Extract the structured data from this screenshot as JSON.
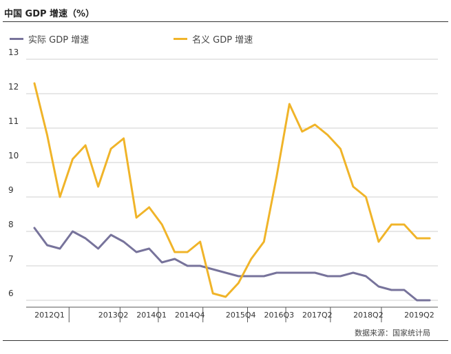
{
  "header": {
    "title": "中国 GDP 增速（%）"
  },
  "source": "数据来源：国家统计局",
  "colors": {
    "real": "#77739b",
    "nominal": "#f0b429",
    "grid": "#cfcfcf",
    "axis": "#555555"
  },
  "chart_data": {
    "type": "line",
    "title": "中国 GDP 增速（%）",
    "xlabel": "",
    "ylabel": "",
    "ylim": [
      5.8,
      13
    ],
    "yticks": [
      6,
      7,
      8,
      9,
      10,
      11,
      12,
      13
    ],
    "grid": true,
    "legend_position": "top-left",
    "x": [
      "2012Q1",
      "2012Q2",
      "2012Q3",
      "2012Q4",
      "2013Q1",
      "2013Q2",
      "2013Q3",
      "2013Q4",
      "2014Q1",
      "2014Q2",
      "2014Q3",
      "2014Q4",
      "2015Q1",
      "2015Q2",
      "2015Q3",
      "2015Q4",
      "2016Q1",
      "2016Q2",
      "2016Q3",
      "2016Q4",
      "2017Q1",
      "2017Q2",
      "2017Q3",
      "2017Q4",
      "2018Q1",
      "2018Q2",
      "2018Q3",
      "2018Q4",
      "2019Q1",
      "2019Q2",
      "2019Q3",
      "2019Q4"
    ],
    "xtick_labels": [
      "2012Q1",
      "2013Q2",
      "2014Q1",
      "2014Q4",
      "2015Q4",
      "2016Q3",
      "2017Q2",
      "2018Q2",
      "2019Q2"
    ],
    "xtick_label_indices": [
      0,
      5,
      8,
      11,
      15,
      18,
      21,
      25,
      29
    ],
    "series": [
      {
        "name": "实际 GDP 增速",
        "color": "#77739b",
        "values": [
          8.1,
          7.6,
          7.5,
          8.0,
          7.8,
          7.5,
          7.9,
          7.7,
          7.4,
          7.5,
          7.1,
          7.2,
          7.0,
          7.0,
          6.9,
          6.8,
          6.7,
          6.7,
          6.7,
          6.8,
          6.8,
          6.8,
          6.8,
          6.7,
          6.7,
          6.8,
          6.7,
          6.4,
          6.3,
          6.3,
          6.0,
          6.0
        ]
      },
      {
        "name": "名义 GDP 增速",
        "color": "#f0b429",
        "values": [
          12.3,
          10.8,
          9.0,
          10.1,
          10.5,
          9.3,
          10.4,
          10.7,
          8.4,
          8.7,
          8.2,
          7.4,
          7.4,
          7.7,
          6.2,
          6.1,
          6.5,
          7.2,
          7.7,
          9.6,
          11.7,
          10.9,
          11.1,
          10.8,
          10.4,
          9.3,
          9.0,
          7.7,
          8.2,
          8.2,
          7.8,
          7.8
        ]
      }
    ]
  }
}
